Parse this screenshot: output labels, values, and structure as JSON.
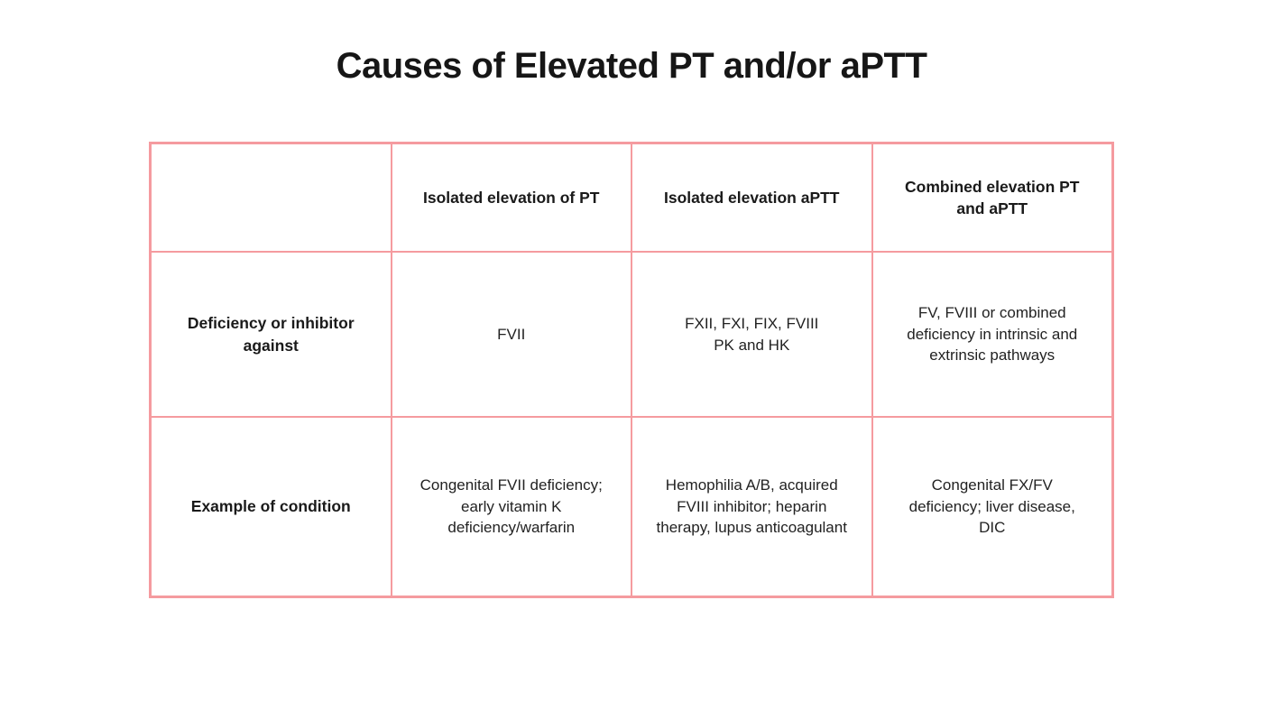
{
  "page": {
    "title": "Causes of Elevated PT and/or aPTT"
  },
  "colors": {
    "table_border": "#f59b9f",
    "title_text": "#161616",
    "body_text": "#222222",
    "background": "#ffffff"
  },
  "table": {
    "columns": [
      "",
      "Isolated elevation of PT",
      "Isolated elevation aPTT",
      "Combined elevation PT and aPTT"
    ],
    "rows": [
      {
        "label": "Deficiency or inhibitor against",
        "cells": [
          "FVII",
          "FXII, FXI, FIX, FVIII\nPK and HK",
          "FV, FVIII or combined deficiency in intrinsic and extrinsic pathways"
        ]
      },
      {
        "label": "Example of condition",
        "cells": [
          "Congenital FVII deficiency; early vitamin K deficiency/warfarin",
          "Hemophilia A/B, acquired FVIII inhibitor; heparin therapy, lupus anticoagulant",
          "Congenital FX/FV deficiency; liver disease, DIC"
        ]
      }
    ]
  }
}
